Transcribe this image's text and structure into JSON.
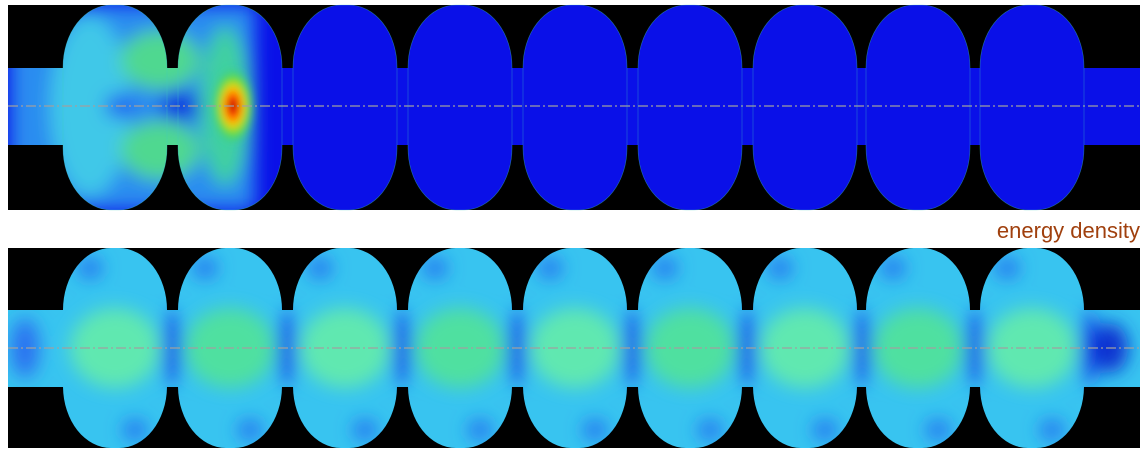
{
  "label": "energy density"
}
